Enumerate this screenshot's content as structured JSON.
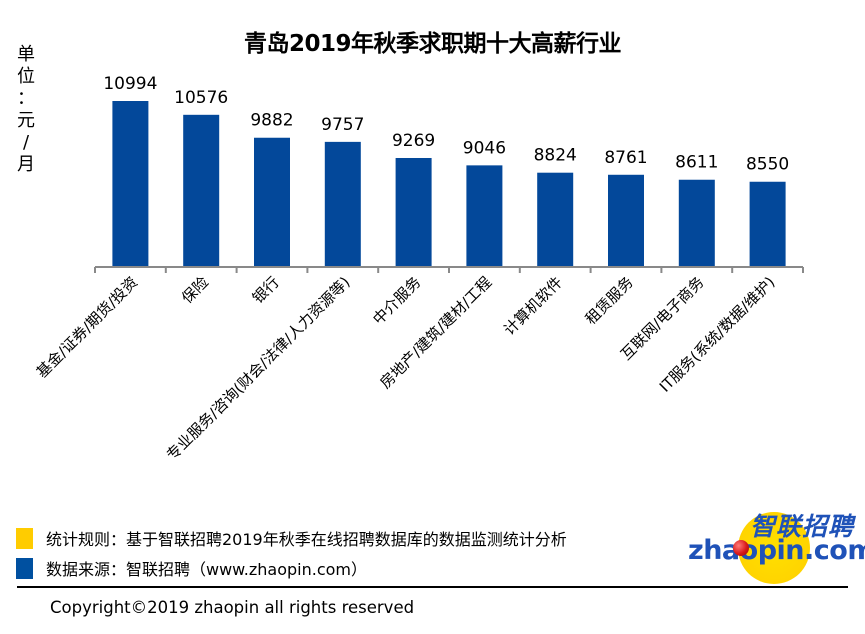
{
  "chart_data": {
    "type": "bar",
    "title": "青岛2019年秋季求职期十大高薪行业",
    "ylabel": "单位：元/月",
    "xlabel": "",
    "categories": [
      "基金/证券/期货/投资",
      "保险",
      "银行",
      "专业服务/咨询(财会/法律/人力资源等)",
      "中介服务",
      "房地产/建筑/建材/工程",
      "计算机软件",
      "租赁服务",
      "互联网/电子商务",
      "IT服务(系统/数据/维护)"
    ],
    "values": [
      10994,
      10576,
      9882,
      9757,
      9269,
      9046,
      8824,
      8761,
      8611,
      8550
    ],
    "data_labels": [
      "10994",
      "10576",
      "9882",
      "9757",
      "9269",
      "9046",
      "8824",
      "8761",
      "8611",
      "8550"
    ],
    "ylim": [
      6000,
      12000
    ],
    "grid": false,
    "y_axis_visible": false,
    "bar_color": "#03489A"
  },
  "unit_label": [
    "单",
    "位",
    "：",
    "元",
    "/",
    "月"
  ],
  "legend": [
    {
      "text": "统计规则：基于智联招聘2019年秋季在线招聘数据库的数据监测统计分析",
      "color": "#FFCC00"
    },
    {
      "text": "数据来源：智联招聘（www.zhaopin.com）",
      "color": "#0050A0"
    }
  ],
  "copyright": "Copyright©2019 zhaopin all rights reserved",
  "logo": {
    "cn_text": "智联招聘",
    "en_text": "zhaopin.com",
    "brand_color": "#1F52B8",
    "circle_color": "#FFD400",
    "ball_color": "#D81818"
  }
}
